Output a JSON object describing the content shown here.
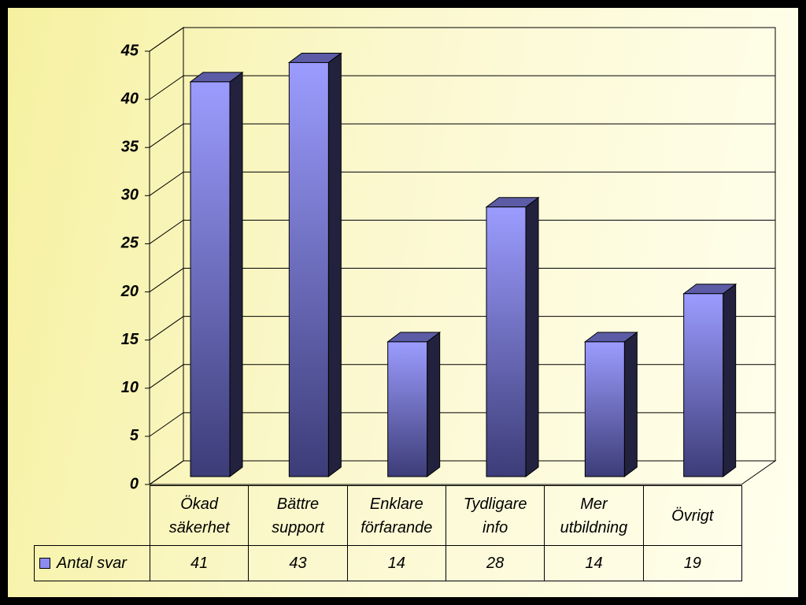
{
  "chart_data": {
    "type": "bar3d",
    "categories": [
      "Ökad säkerhet",
      "Bättre support",
      "Enklare förfarande",
      "Tydligare info",
      "Mer utbildning",
      "Övrigt"
    ],
    "series": [
      {
        "name": "Antal svar",
        "color": "#8c8cf0",
        "values": [
          41,
          43,
          14,
          28,
          14,
          19
        ]
      }
    ],
    "ylim": [
      0,
      45
    ],
    "yticks": [
      0,
      5,
      10,
      15,
      20,
      25,
      30,
      35,
      40,
      45
    ],
    "grid": true,
    "legend": "data-table"
  }
}
